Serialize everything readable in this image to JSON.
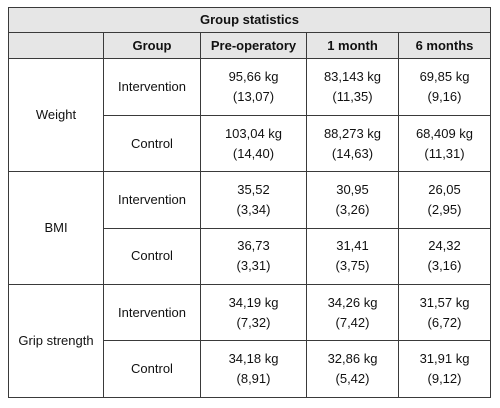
{
  "table": {
    "title": "Group statistics",
    "headers": {
      "measure": "",
      "group": "Group",
      "pre": "Pre-operatory",
      "m1": "1 month",
      "m6": "6 months"
    },
    "rows": [
      {
        "measure": "Weight",
        "groups": [
          {
            "group": "Intervention",
            "pre": {
              "mean": "95,66 kg",
              "sd": "(13,07)"
            },
            "m1": {
              "mean": "83,143 kg",
              "sd": "(11,35)"
            },
            "m6": {
              "mean": "69,85 kg",
              "sd": "(9,16)"
            }
          },
          {
            "group": "Control",
            "pre": {
              "mean": "103,04 kg",
              "sd": "(14,40)"
            },
            "m1": {
              "mean": "88,273 kg",
              "sd": "(14,63)"
            },
            "m6": {
              "mean": "68,409 kg",
              "sd": "(11,31)"
            }
          }
        ]
      },
      {
        "measure": "BMI",
        "groups": [
          {
            "group": "Intervention",
            "pre": {
              "mean": "35,52",
              "sd": "(3,34)"
            },
            "m1": {
              "mean": "30,95",
              "sd": "(3,26)"
            },
            "m6": {
              "mean": "26,05",
              "sd": "(2,95)"
            }
          },
          {
            "group": "Control",
            "pre": {
              "mean": "36,73",
              "sd": "(3,31)"
            },
            "m1": {
              "mean": "31,41",
              "sd": "(3,75)"
            },
            "m6": {
              "mean": "24,32",
              "sd": "(3,16)"
            }
          }
        ]
      },
      {
        "measure": "Grip strength",
        "groups": [
          {
            "group": "Intervention",
            "pre": {
              "mean": "34,19 kg",
              "sd": "(7,32)"
            },
            "m1": {
              "mean": "34,26 kg",
              "sd": "(7,42)"
            },
            "m6": {
              "mean": "31,57 kg",
              "sd": "(6,72)"
            }
          },
          {
            "group": "Control",
            "pre": {
              "mean": "34,18 kg",
              "sd": "(8,91)"
            },
            "m1": {
              "mean": "32,86 kg",
              "sd": "(5,42)"
            },
            "m6": {
              "mean": "31,91 kg",
              "sd": "(9,12)"
            }
          }
        ]
      }
    ]
  }
}
